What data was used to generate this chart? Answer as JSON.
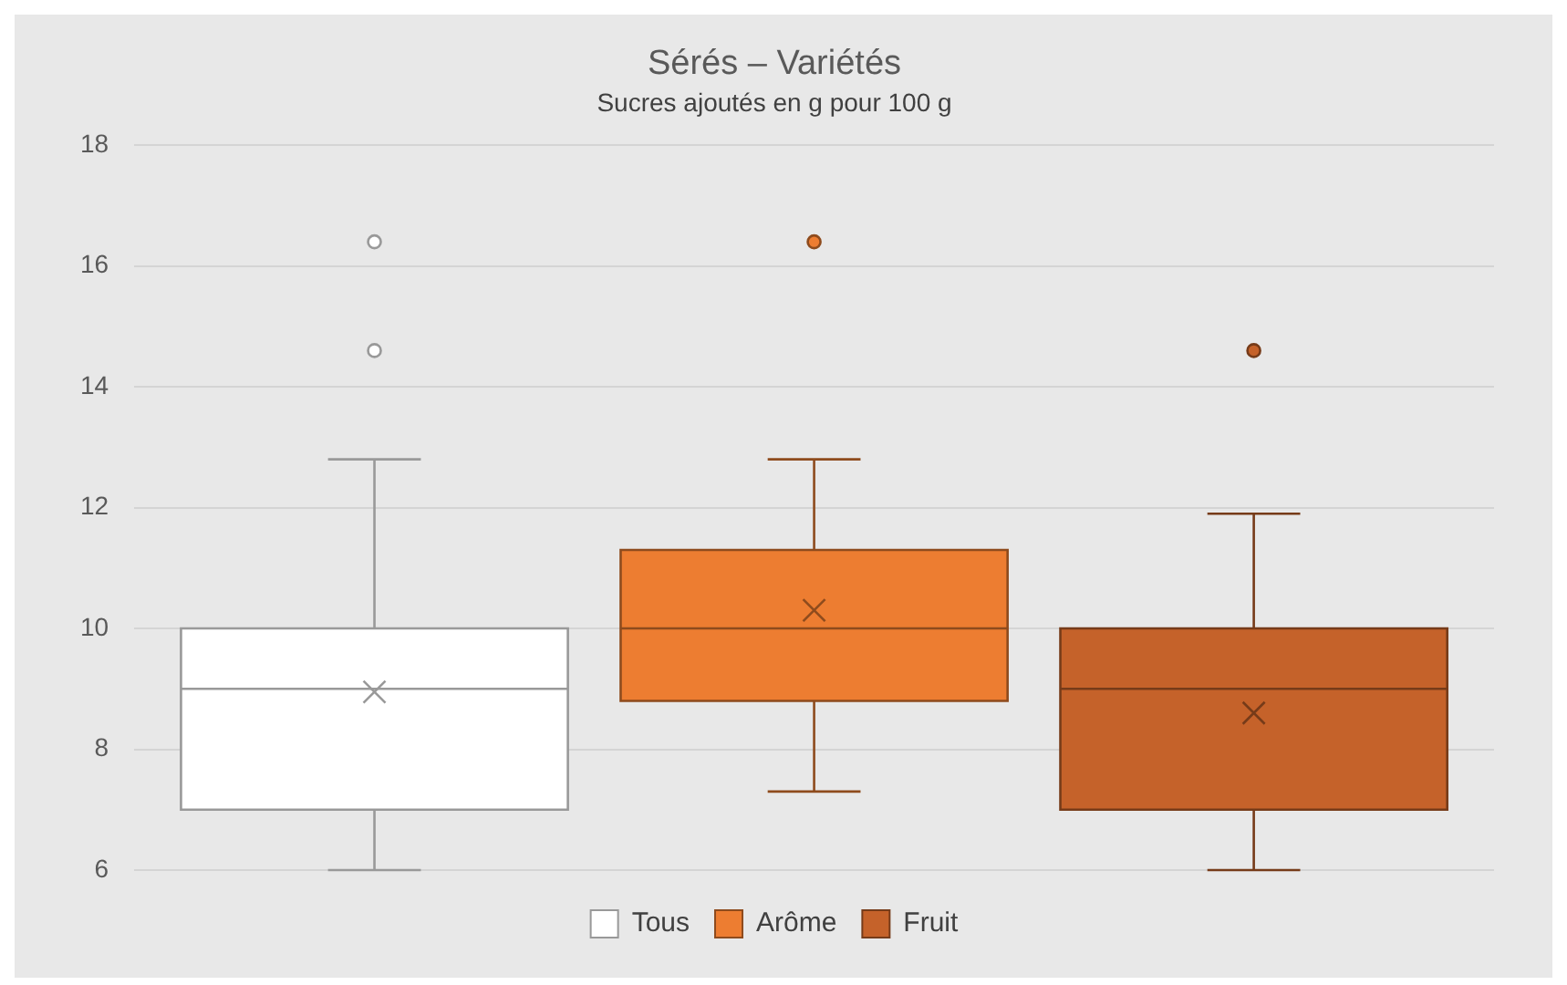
{
  "chart_data": {
    "type": "box",
    "title": "Sérés – Variétés",
    "subtitle": "Sucres ajoutés en g pour 100 g",
    "categories": [
      null
    ],
    "series": [
      {
        "name": "Tous",
        "color": "#ffffff",
        "boxes": [
          {
            "low": 6,
            "q1": 7,
            "median": 9,
            "q3": 10,
            "high": 12.8,
            "mean": 8.95,
            "outliers": [
              14.6,
              16.4
            ]
          }
        ]
      },
      {
        "name": "Arôme",
        "color": "#ed7d31",
        "boxes": [
          {
            "low": 7.3,
            "q1": 8.8,
            "median": 10,
            "q3": 11.3,
            "high": 12.8,
            "mean": 10.3,
            "outliers": [
              16.4
            ]
          }
        ]
      },
      {
        "name": "Fruit",
        "color": "#c5622a",
        "boxes": [
          {
            "low": 6,
            "q1": 7,
            "median": 9,
            "q3": 10,
            "high": 11.9,
            "mean": 8.6,
            "outliers": [
              14.6
            ]
          }
        ]
      }
    ],
    "ylim": [
      6,
      18
    ],
    "yticks": [
      6,
      8,
      10,
      12,
      14,
      16,
      18
    ],
    "grid": "y",
    "legend": "bottom",
    "tick_labels": "y"
  }
}
